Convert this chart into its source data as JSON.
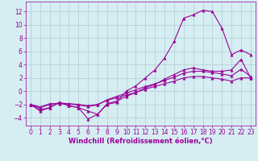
{
  "background_color": "#d6eef2",
  "grid_color": "#b0ccd4",
  "line_color": "#990099",
  "markersize": 2.5,
  "linewidth": 0.8,
  "xlabel": "Windchill (Refroidissement éolien,°C)",
  "xlabel_fontsize": 6.0,
  "tick_fontsize": 5.5,
  "xlim": [
    -0.5,
    23.5
  ],
  "ylim": [
    -5.2,
    13.5
  ],
  "yticks": [
    -4,
    -2,
    0,
    2,
    4,
    6,
    8,
    10,
    12
  ],
  "xticks": [
    0,
    1,
    2,
    3,
    4,
    5,
    6,
    7,
    8,
    9,
    10,
    11,
    12,
    13,
    14,
    15,
    16,
    17,
    18,
    19,
    20,
    21,
    22,
    23
  ],
  "series": [
    {
      "x": [
        0,
        1,
        2,
        3,
        4,
        5,
        6,
        7,
        8,
        9,
        10,
        11,
        12,
        13,
        14,
        15,
        16,
        17,
        18,
        19,
        20,
        21,
        22,
        23
      ],
      "y": [
        -2.0,
        -3.0,
        -2.5,
        -1.7,
        -2.2,
        -2.5,
        -4.2,
        -3.5,
        -2.0,
        -1.7,
        0.0,
        0.8,
        2.0,
        3.2,
        5.0,
        7.5,
        11.0,
        11.5,
        12.2,
        12.0,
        9.5,
        5.5,
        6.2,
        5.5
      ]
    },
    {
      "x": [
        0,
        1,
        2,
        3,
        4,
        5,
        6,
        7,
        8,
        9,
        10,
        11,
        12,
        13,
        14,
        15,
        16,
        17,
        18,
        19,
        20,
        21,
        22,
        23
      ],
      "y": [
        -2.0,
        -2.8,
        -2.5,
        -1.7,
        -2.2,
        -2.5,
        -3.0,
        -3.5,
        -1.9,
        -1.5,
        -0.8,
        -0.2,
        0.5,
        1.0,
        1.8,
        2.5,
        3.2,
        3.5,
        3.2,
        3.0,
        3.0,
        3.2,
        4.8,
        2.0
      ]
    },
    {
      "x": [
        0,
        1,
        2,
        3,
        4,
        5,
        6,
        7,
        8,
        9,
        10,
        11,
        12,
        13,
        14,
        15,
        16,
        17,
        18,
        19,
        20,
        21,
        22,
        23
      ],
      "y": [
        -2.0,
        -2.5,
        -2.0,
        -1.8,
        -1.9,
        -2.1,
        -2.3,
        -2.1,
        -1.3,
        -0.8,
        -0.3,
        0.2,
        0.7,
        1.1,
        1.6,
        2.1,
        2.7,
        3.0,
        3.0,
        2.8,
        2.6,
        2.3,
        3.3,
        2.2
      ]
    },
    {
      "x": [
        0,
        1,
        2,
        3,
        4,
        5,
        6,
        7,
        8,
        9,
        10,
        11,
        12,
        13,
        14,
        15,
        16,
        17,
        18,
        19,
        20,
        21,
        22,
        23
      ],
      "y": [
        -2.0,
        -2.4,
        -1.9,
        -1.9,
        -1.9,
        -2.0,
        -2.2,
        -2.0,
        -1.4,
        -1.0,
        -0.6,
        -0.2,
        0.3,
        0.7,
        1.1,
        1.5,
        2.0,
        2.2,
        2.2,
        2.0,
        1.8,
        1.5,
        2.0,
        2.0
      ]
    }
  ]
}
